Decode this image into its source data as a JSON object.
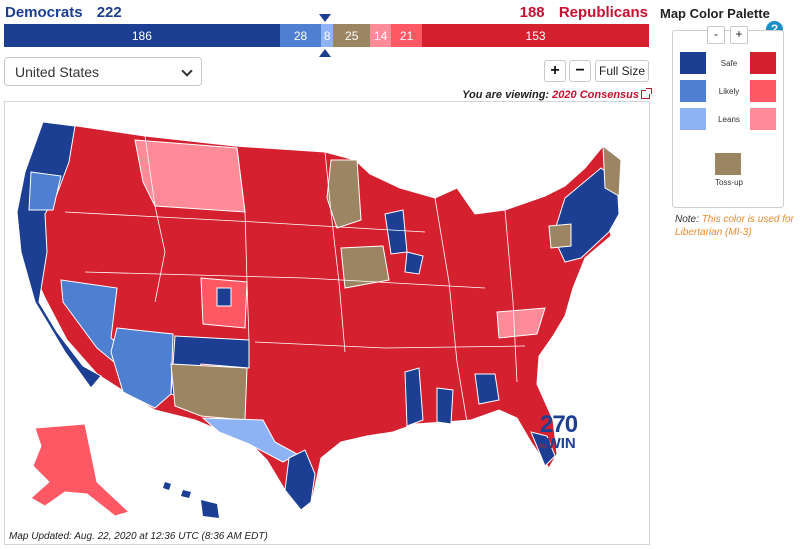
{
  "header": {
    "dem_label": "Democrats",
    "dem_total": "222",
    "rep_total": "188",
    "rep_label": "Republicans"
  },
  "bar": [
    {
      "value": "186",
      "color": "#1c3f94",
      "flex": 186
    },
    {
      "value": "28",
      "color": "#4e7fd1",
      "flex": 28
    },
    {
      "value": "8",
      "color": "#8db3f4",
      "flex": 8
    },
    {
      "value": "25",
      "color": "#9c8563",
      "flex": 25
    },
    {
      "value": "14",
      "color": "#ff8b98",
      "flex": 14
    },
    {
      "value": "21",
      "color": "#ff5865",
      "flex": 21
    },
    {
      "value": "153",
      "color": "#d5202f",
      "flex": 153
    }
  ],
  "controls": {
    "region_select": "United States",
    "zoom_in": "+",
    "zoom_out": "−",
    "full_size": "Full Size"
  },
  "viewing": {
    "prefix": "You are viewing:",
    "link": "2020 Consensus"
  },
  "map": {
    "updated": "Map Updated: Aug. 22, 2020 at 12:36 UTC (8:36 AM EDT)",
    "logo_number": "270",
    "logo_to": "to",
    "logo_win": "WIN"
  },
  "palette": {
    "title": "Map Color Palette",
    "help": "?",
    "minus": "-",
    "plus": "+",
    "rows": [
      {
        "label": "Safe",
        "dem": "#1c3f94",
        "rep": "#d5202f"
      },
      {
        "label": "Likely",
        "dem": "#4e7fd1",
        "rep": "#ff5865"
      },
      {
        "label": "Leans",
        "dem": "#8db3f4",
        "rep": "#ff8b98"
      }
    ],
    "tossup_label": "Toss-up",
    "tossup_color": "#9c8563"
  },
  "note": {
    "prefix": "Note:",
    "text": "This color is used for Libertarian (MI-3)"
  }
}
